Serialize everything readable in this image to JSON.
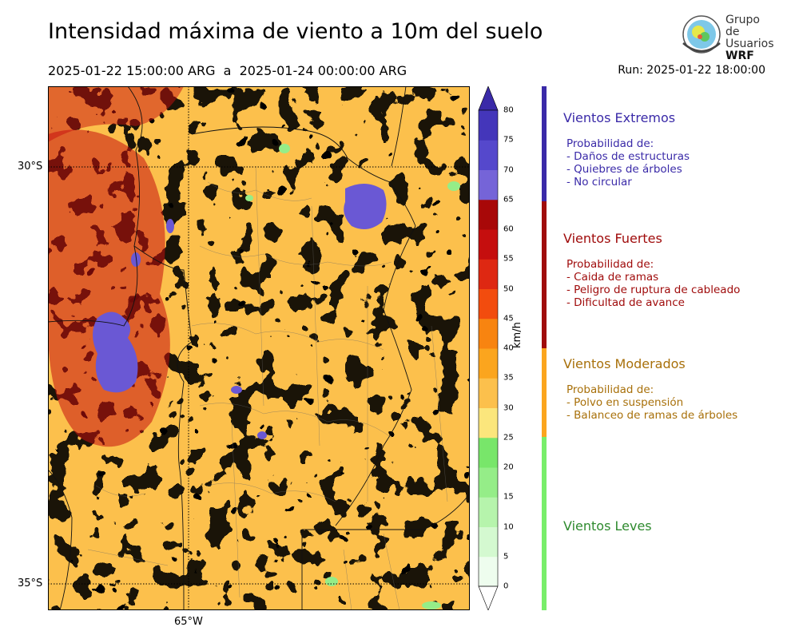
{
  "title": "Intensidad máxima de viento a 10m del suelo",
  "subtitle": "2025-01-22 15:00:00 ARG  a  2025-01-24 00:00:00 ARG",
  "run": "Run: 2025-01-22 18:00:00",
  "logo": {
    "line1": "Grupo de",
    "line2": "Usuarios",
    "line3": "WRF"
  },
  "map": {
    "lat_labels": [
      "30°S",
      "35°S"
    ],
    "lon_labels": [
      "65°W"
    ]
  },
  "colorbar": {
    "unit": "km/h",
    "ticks": [
      "0",
      "5",
      "10",
      "15",
      "20",
      "25",
      "30",
      "35",
      "40",
      "45",
      "50",
      "55",
      "60",
      "65",
      "70",
      "75",
      "80"
    ],
    "colors": [
      "#eefdee",
      "#d4f9d0",
      "#b6f4ac",
      "#95ed88",
      "#78e66a",
      "#fbe67c",
      "#fcc04c",
      "#fba51e",
      "#f88410",
      "#f24c0e",
      "#de2812",
      "#c50e0e",
      "#a80808",
      "#7564d8",
      "#5548cc",
      "#4436ba"
    ],
    "under_color": "#ffffff",
    "over_color": "#3a2aa8"
  },
  "bands": [
    {
      "title": "Vientos Extremos",
      "color": "#3a2aa8",
      "lines": [
        "Probabilidad de:",
        "- Daños de estructuras",
        "- Quiebres de árboles",
        "- No circular"
      ]
    },
    {
      "title": "Vientos Fuertes",
      "color": "#a00c0c",
      "lines": [
        "Probabilidad de:",
        "- Caida de ramas",
        "- Peligro de ruptura de cableado",
        "- Dificultad de avance"
      ]
    },
    {
      "title": "Vientos Moderados",
      "color": "#a8700a",
      "bar_color": "#fba51e",
      "lines": [
        "Probabilidad de:",
        "- Polvo en suspensión",
        "- Balanceo de ramas de árboles"
      ]
    },
    {
      "title": "Vientos Leves",
      "color": "#2e8a2e",
      "bar_color": "#78ee6a",
      "lines": []
    }
  ]
}
